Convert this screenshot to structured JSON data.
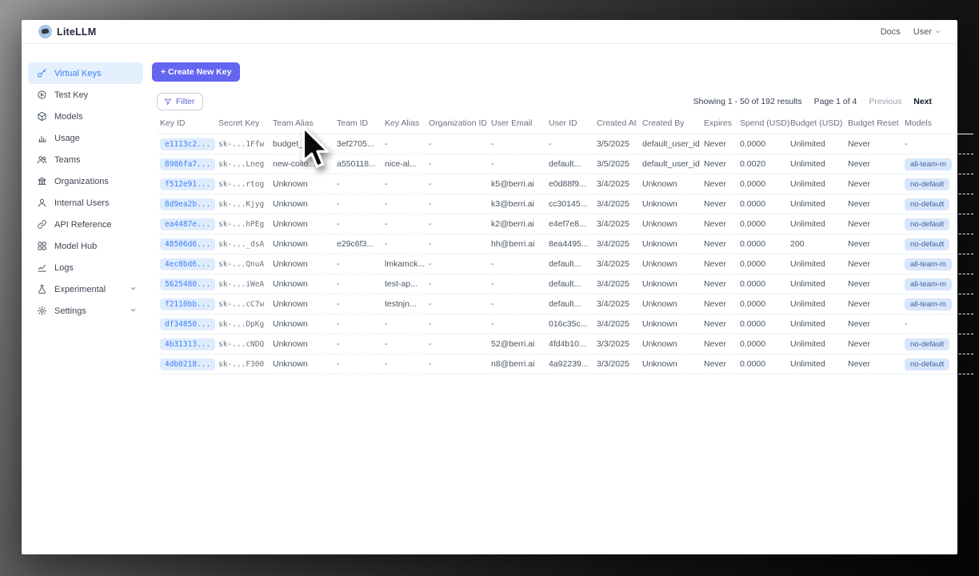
{
  "window": {
    "title": "LiteLLM",
    "nav": {
      "docs": "Docs",
      "user": "User"
    }
  },
  "sidebar": {
    "items": [
      {
        "label": "Virtual Keys",
        "icon": "key-icon",
        "active": true
      },
      {
        "label": "Test Key",
        "icon": "play-circle-icon",
        "active": false
      },
      {
        "label": "Models",
        "icon": "cube-icon",
        "active": false
      },
      {
        "label": "Usage",
        "icon": "bar-chart-icon",
        "active": false
      },
      {
        "label": "Teams",
        "icon": "users-icon",
        "active": false
      },
      {
        "label": "Organizations",
        "icon": "bank-icon",
        "active": false
      },
      {
        "label": "Internal Users",
        "icon": "user-icon",
        "active": false
      },
      {
        "label": "API Reference",
        "icon": "link-icon",
        "active": false
      },
      {
        "label": "Model Hub",
        "icon": "grid-icon",
        "active": false
      },
      {
        "label": "Logs",
        "icon": "line-chart-icon",
        "active": false
      },
      {
        "label": "Experimental",
        "icon": "flask-icon",
        "active": false,
        "chevron": true
      },
      {
        "label": "Settings",
        "icon": "gear-icon",
        "active": false,
        "chevron": true
      }
    ]
  },
  "toolbar": {
    "create_label": "+ Create New Key",
    "filter_label": "Filter"
  },
  "pagination": {
    "showing": "Showing 1 - 50 of 192 results",
    "page": "Page 1 of 4",
    "previous": "Previous",
    "next": "Next"
  },
  "colors": {
    "accent": "#6366f1",
    "active_blue": "#3d83f6",
    "badge_bg": "#dfecfd"
  },
  "table": {
    "columns": [
      "Key ID",
      "Secret Key",
      "Team Alias",
      "Team ID",
      "Key Alias",
      "Organization ID",
      "User Email",
      "User ID",
      "Created At",
      "Created By",
      "Expires",
      "Spend (USD)",
      "Budget (USD)",
      "Budget Reset",
      "Models"
    ],
    "rows": [
      [
        "e1113c2...",
        "sk-...1Ffw",
        "budget_team",
        "3ef2705...",
        "-",
        "-",
        "-",
        "-",
        "3/5/2025",
        "default_user_id",
        "Never",
        "0.0000",
        "Unlimited",
        "Never",
        "-"
      ],
      [
        "8986fa7...",
        "sk-...Lneg",
        "new-collo...",
        "a550118...",
        "nice-al...",
        "-",
        "-",
        "default...",
        "3/5/2025",
        "default_user_id",
        "Never",
        "0.0020",
        "Unlimited",
        "Never",
        "all-team-m"
      ],
      [
        "f512e91...",
        "sk-...rtog",
        "Unknown",
        "-",
        "-",
        "-",
        "k5@berri.ai",
        "e0d88f9...",
        "3/4/2025",
        "Unknown",
        "Never",
        "0.0000",
        "Unlimited",
        "Never",
        "no-default"
      ],
      [
        "8d9ea2b...",
        "sk-...Kjyg",
        "Unknown",
        "-",
        "-",
        "-",
        "k3@berri.ai",
        "cc30145...",
        "3/4/2025",
        "Unknown",
        "Never",
        "0.0000",
        "Unlimited",
        "Never",
        "no-default"
      ],
      [
        "ea4487e...",
        "sk-...hPEg",
        "Unknown",
        "-",
        "-",
        "-",
        "k2@berri.ai",
        "e4ef7e8...",
        "3/4/2025",
        "Unknown",
        "Never",
        "0.0000",
        "Unlimited",
        "Never",
        "no-default"
      ],
      [
        "48506d6...",
        "sk-..._dsA",
        "Unknown",
        "e29c6f3...",
        "-",
        "-",
        "hh@berri.ai",
        "8ea4495...",
        "3/4/2025",
        "Unknown",
        "Never",
        "0.0000",
        "200",
        "Never",
        "no-default"
      ],
      [
        "4ec0bd6...",
        "sk-...QnuA",
        "Unknown",
        "-",
        "lmkamck...",
        "-",
        "-",
        "default...",
        "3/4/2025",
        "Unknown",
        "Never",
        "0.0000",
        "Unlimited",
        "Never",
        "all-team-m"
      ],
      [
        "5625480...",
        "sk-...iWeA",
        "Unknown",
        "-",
        "test-ap...",
        "-",
        "-",
        "default...",
        "3/4/2025",
        "Unknown",
        "Never",
        "0.0000",
        "Unlimited",
        "Never",
        "all-team-m"
      ],
      [
        "f2110bb...",
        "sk-...cC7w",
        "Unknown",
        "-",
        "testnjn...",
        "-",
        "-",
        "default...",
        "3/4/2025",
        "Unknown",
        "Never",
        "0.0000",
        "Unlimited",
        "Never",
        "all-team-m"
      ],
      [
        "df34850...",
        "sk-...DpKg",
        "Unknown",
        "-",
        "-",
        "-",
        "-",
        "016c35c...",
        "3/4/2025",
        "Unknown",
        "Never",
        "0.0000",
        "Unlimited",
        "Never",
        "-"
      ],
      [
        "4b31313...",
        "sk-...cNDQ",
        "Unknown",
        "-",
        "-",
        "-",
        "52@berri.ai",
        "4fd4b10...",
        "3/3/2025",
        "Unknown",
        "Never",
        "0.0000",
        "Unlimited",
        "Never",
        "no-default"
      ],
      [
        "4db0218...",
        "sk-...F300",
        "Unknown",
        "-",
        "-",
        "-",
        "n8@berri.ai",
        "4a92239...",
        "3/3/2025",
        "Unknown",
        "Never",
        "0.0000",
        "Unlimited",
        "Never",
        "no-default"
      ]
    ]
  }
}
